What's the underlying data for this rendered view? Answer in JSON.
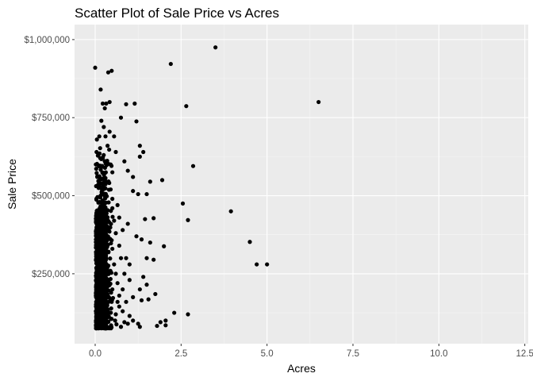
{
  "chart_data": {
    "type": "scatter",
    "title": "Scatter Plot of Sale Price vs Acres",
    "xlabel": "Acres",
    "ylabel": "Sale Price",
    "xlim": [
      -0.6,
      12.6
    ],
    "ylim": [
      26000,
      1048000
    ],
    "x_ticks": [
      0,
      2.5,
      5,
      7.5,
      10,
      12.5
    ],
    "x_tick_labels": [
      "0.0",
      "2.5",
      "5.0",
      "7.5",
      "10.0",
      "12.5"
    ],
    "y_ticks": [
      250000,
      500000,
      750000,
      1000000
    ],
    "y_tick_labels": [
      "$250,000",
      "$500,000",
      "$750,000",
      "$1,000,000"
    ],
    "grid": true,
    "legend": "none",
    "colors": {
      "panel_background": "#ebebeb",
      "grid": "#ffffff",
      "point": "#000000"
    },
    "points": [
      [
        0.0,
        910000
      ],
      [
        0.38,
        895000
      ],
      [
        0.48,
        900000
      ],
      [
        0.16,
        840000
      ],
      [
        0.22,
        795000
      ],
      [
        0.32,
        795000
      ],
      [
        0.42,
        800000
      ],
      [
        0.28,
        780000
      ],
      [
        0.9,
        793000
      ],
      [
        1.15,
        795000
      ],
      [
        2.2,
        922000
      ],
      [
        3.5,
        975000
      ],
      [
        2.65,
        787000
      ],
      [
        6.5,
        800000
      ],
      [
        0.75,
        750000
      ],
      [
        1.2,
        738000
      ],
      [
        1.3,
        660000
      ],
      [
        1.4,
        640000
      ],
      [
        1.3,
        625000
      ],
      [
        0.85,
        610000
      ],
      [
        0.95,
        580000
      ],
      [
        0.55,
        690000
      ],
      [
        0.6,
        640000
      ],
      [
        2.85,
        595000
      ],
      [
        1.95,
        550000
      ],
      [
        1.1,
        560000
      ],
      [
        1.6,
        545000
      ],
      [
        0.5,
        575000
      ],
      [
        0.45,
        600000
      ],
      [
        2.55,
        475000
      ],
      [
        2.7,
        422000
      ],
      [
        3.95,
        450000
      ],
      [
        4.5,
        352000
      ],
      [
        4.7,
        280000
      ],
      [
        5.0,
        280000
      ],
      [
        1.7,
        428000
      ],
      [
        1.5,
        505000
      ],
      [
        1.1,
        515000
      ],
      [
        1.25,
        505000
      ],
      [
        1.45,
        425000
      ],
      [
        1.2,
        370000
      ],
      [
        1.35,
        360000
      ],
      [
        1.6,
        350000
      ],
      [
        2.0,
        338000
      ],
      [
        1.5,
        300000
      ],
      [
        1.7,
        295000
      ],
      [
        0.8,
        390000
      ],
      [
        0.95,
        410000
      ],
      [
        1.4,
        240000
      ],
      [
        1.5,
        215000
      ],
      [
        1.3,
        200000
      ],
      [
        1.35,
        165000
      ],
      [
        1.1,
        175000
      ],
      [
        1.55,
        168000
      ],
      [
        1.75,
        185000
      ],
      [
        2.05,
        100000
      ],
      [
        1.9,
        95000
      ],
      [
        2.05,
        85000
      ],
      [
        1.8,
        83000
      ],
      [
        2.3,
        125000
      ],
      [
        2.7,
        120000
      ],
      [
        1.25,
        90000
      ],
      [
        1.3,
        80000
      ],
      [
        0.85,
        95000
      ],
      [
        1.0,
        115000
      ],
      [
        1.1,
        100000
      ],
      [
        0.7,
        145000
      ],
      [
        0.6,
        120000
      ],
      [
        0.5,
        460000
      ],
      [
        0.55,
        420000
      ],
      [
        0.6,
        380000
      ],
      [
        0.7,
        340000
      ],
      [
        0.75,
        300000
      ],
      [
        0.6,
        250000
      ],
      [
        0.65,
        220000
      ],
      [
        0.8,
        200000
      ],
      [
        0.7,
        180000
      ],
      [
        0.9,
        160000
      ],
      [
        0.5,
        330000
      ],
      [
        0.55,
        280000
      ],
      [
        0.5,
        200000
      ],
      [
        0.48,
        160000
      ],
      [
        0.45,
        520000
      ],
      [
        0.5,
        490000
      ],
      [
        0.65,
        470000
      ],
      [
        0.7,
        430000
      ],
      [
        0.9,
        300000
      ],
      [
        0.85,
        250000
      ],
      [
        1.0,
        280000
      ],
      [
        1.0,
        230000
      ],
      [
        0.65,
        160000
      ],
      [
        0.8,
        130000
      ],
      [
        0.95,
        90000
      ],
      [
        0.75,
        80000
      ],
      [
        0.58,
        100000
      ],
      [
        0.62,
        88000
      ],
      [
        0.42,
        705000
      ],
      [
        0.36,
        660000
      ],
      [
        0.3,
        690000
      ],
      [
        0.25,
        720000
      ],
      [
        0.18,
        740000
      ],
      [
        0.12,
        690000
      ],
      [
        0.05,
        680000
      ],
      [
        0.04,
        640000
      ],
      [
        0.02,
        600000
      ],
      [
        0.06,
        560000
      ]
    ]
  }
}
